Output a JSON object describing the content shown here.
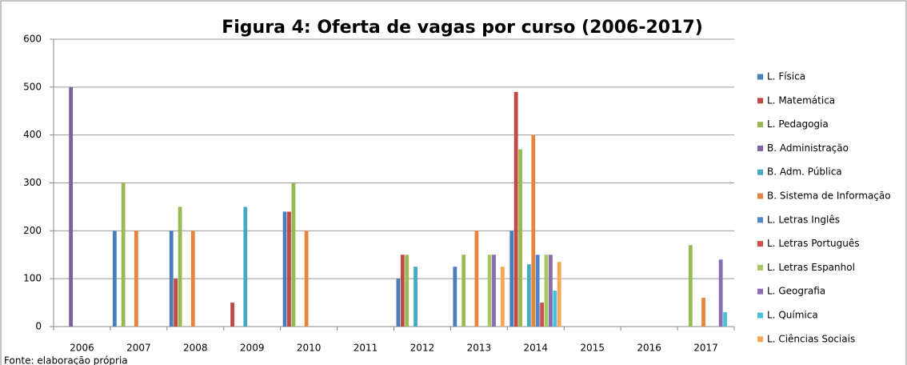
{
  "chart_data": {
    "type": "bar",
    "title": "Figura 4: Oferta de vagas por curso (2006-2017)",
    "footnote": "Fonte: elaboração própria",
    "categories": [
      "2006",
      "2007",
      "2008",
      "2009",
      "2010",
      "2011",
      "2012",
      "2013",
      "2014",
      "2015",
      "2016",
      "2017"
    ],
    "ylim": [
      0,
      600
    ],
    "yticks": [
      0,
      100,
      200,
      300,
      400,
      500,
      600
    ],
    "grid": true,
    "legend": "right",
    "series": [
      {
        "name": "L. Física",
        "color": "#4a7ebb",
        "values": [
          0,
          200,
          200,
          0,
          240,
          0,
          100,
          125,
          200,
          0,
          0,
          0
        ]
      },
      {
        "name": "L. Matemática",
        "color": "#be4b48",
        "values": [
          0,
          0,
          100,
          50,
          240,
          0,
          150,
          0,
          490,
          0,
          0,
          0
        ]
      },
      {
        "name": "L. Pedagogia",
        "color": "#98b954",
        "values": [
          0,
          300,
          250,
          0,
          300,
          0,
          150,
          150,
          370,
          0,
          0,
          170
        ]
      },
      {
        "name": "B. Administração",
        "color": "#7d60a0",
        "values": [
          500,
          0,
          0,
          0,
          0,
          0,
          0,
          0,
          0,
          0,
          0,
          0
        ]
      },
      {
        "name": "B. Adm. Pública",
        "color": "#46aac5",
        "values": [
          0,
          0,
          0,
          250,
          0,
          0,
          125,
          0,
          130,
          0,
          0,
          0
        ]
      },
      {
        "name": "B. Sistema de Informação",
        "color": "#e8853c",
        "values": [
          0,
          200,
          200,
          0,
          200,
          0,
          0,
          200,
          400,
          0,
          0,
          60
        ]
      },
      {
        "name": "L. Letras Inglês",
        "color": "#4f87c8",
        "values": [
          0,
          0,
          0,
          0,
          0,
          0,
          0,
          0,
          150,
          0,
          0,
          0
        ]
      },
      {
        "name": "L. Letras Português",
        "color": "#d0504d",
        "values": [
          0,
          0,
          0,
          0,
          0,
          0,
          0,
          0,
          50,
          0,
          0,
          0
        ]
      },
      {
        "name": "L. Letras Espanhol",
        "color": "#a5c860",
        "values": [
          0,
          0,
          0,
          0,
          0,
          0,
          0,
          150,
          150,
          0,
          0,
          0
        ]
      },
      {
        "name": "L. Geografia",
        "color": "#8a6cb0",
        "values": [
          0,
          0,
          0,
          0,
          0,
          0,
          0,
          150,
          150,
          0,
          0,
          140
        ]
      },
      {
        "name": "L. Química",
        "color": "#4bc0dc",
        "values": [
          0,
          0,
          0,
          0,
          0,
          0,
          0,
          0,
          75,
          0,
          0,
          30
        ]
      },
      {
        "name": "L. Ciências Sociais",
        "color": "#f8a854",
        "values": [
          0,
          0,
          0,
          0,
          0,
          0,
          0,
          125,
          135,
          0,
          0,
          0
        ]
      }
    ]
  }
}
